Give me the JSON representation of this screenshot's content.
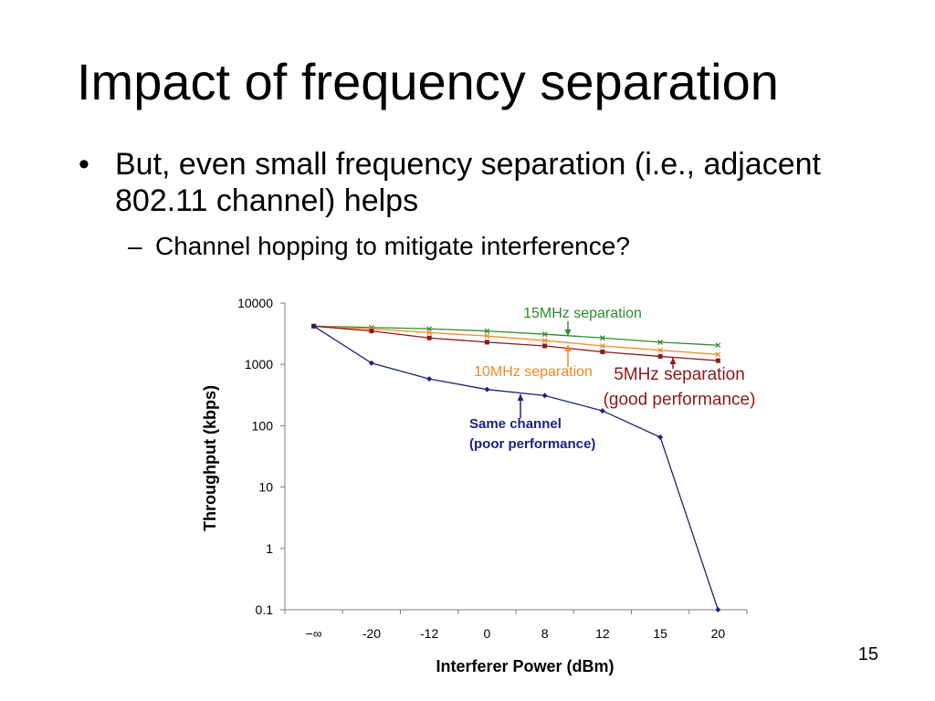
{
  "slide": {
    "title": "Impact of frequency separation",
    "bullets": [
      {
        "marker": "•",
        "text": "But, even small frequency separation (i.e., adjacent 802.11 channel) helps"
      },
      {
        "marker": "–",
        "text": "Channel hopping to mitigate interference?"
      }
    ],
    "page_number": "15"
  },
  "chart_data": {
    "type": "line",
    "title": "",
    "xlabel": "Interferer Power (dBm)",
    "ylabel": "Throughput (kbps)",
    "y_scale": "log",
    "ylim": [
      0.1,
      10000
    ],
    "y_ticks": [
      "0.1",
      "1",
      "10",
      "100",
      "1000",
      "10000"
    ],
    "categories": [
      "−∞",
      "-20",
      "-12",
      "0",
      "8",
      "12",
      "15",
      "20"
    ],
    "grid": false,
    "series": [
      {
        "key": "15mhz",
        "color": "#2e8b2e",
        "marker": "x",
        "values": [
          4200,
          4000,
          3800,
          3500,
          3100,
          2700,
          2300,
          2050
        ]
      },
      {
        "key": "10mhz",
        "color": "#f08a24",
        "marker": "x",
        "values": [
          4200,
          3800,
          3300,
          2900,
          2450,
          2000,
          1700,
          1450
        ]
      },
      {
        "key": "5mhz",
        "color": "#8b1a1a",
        "marker": "square",
        "values": [
          4200,
          3500,
          2700,
          2300,
          2000,
          1600,
          1350,
          1150
        ]
      },
      {
        "key": "same",
        "color": "#1a237e",
        "marker": "diamond",
        "values": [
          4200,
          1050,
          580,
          390,
          310,
          175,
          65,
          0.1
        ]
      }
    ],
    "annotations": [
      {
        "key": "15mhz",
        "lines": [
          "15MHz separation"
        ],
        "color": "#2e8b2e",
        "bold": false
      },
      {
        "key": "10mhz",
        "lines": [
          "10MHz separation"
        ],
        "color": "#f08a24",
        "bold": false
      },
      {
        "key": "5mhz",
        "lines": [
          "5MHz separation",
          "(good performance)"
        ],
        "color": "#8b1a1a",
        "bold": false
      },
      {
        "key": "same",
        "lines": [
          "Same channel",
          "(poor performance)"
        ],
        "color": "#1a237e",
        "bold": true
      }
    ]
  }
}
